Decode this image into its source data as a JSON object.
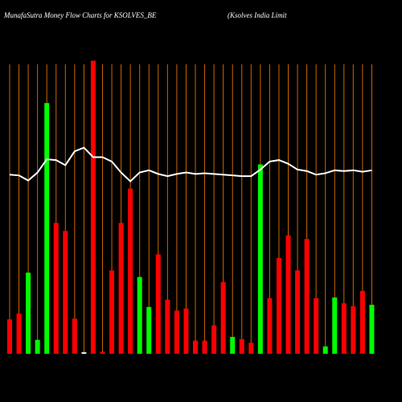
{
  "chart_data": {
    "type": "bar",
    "title": "MunafaSutra  Money Flow  Charts for KSOLVES_BE",
    "subtitle": "(Ksolves India  Limit",
    "categories": [
      null,
      null,
      null,
      null,
      null,
      null,
      null,
      null,
      null,
      null,
      null,
      null,
      null,
      null,
      null,
      null,
      null,
      null,
      null,
      null,
      null,
      null,
      null,
      null,
      null,
      null,
      null,
      null,
      null,
      null,
      null,
      null,
      null,
      null,
      null,
      null,
      null,
      null,
      null,
      null
    ],
    "values": [
      47,
      55,
      111,
      19,
      343,
      179,
      168,
      48,
      2,
      401,
      3,
      114,
      179,
      226,
      105,
      64,
      136,
      74,
      59,
      62,
      18,
      18,
      39,
      98,
      23,
      20,
      15,
      259,
      76,
      131,
      162,
      114,
      157,
      76,
      10,
      77,
      69,
      65,
      86,
      67
    ],
    "colors": [
      "#ff0000",
      "#ff0000",
      "#00ff00",
      "#00ff00",
      "#00ff00",
      "#ff0000",
      "#ff0000",
      "#ff0000",
      "#ffffff",
      "#ff0000",
      "#ff0000",
      "#ff0000",
      "#ff0000",
      "#ff0000",
      "#00ff00",
      "#00ff00",
      "#ff0000",
      "#ff0000",
      "#ff0000",
      "#ff0000",
      "#ff0000",
      "#ff0000",
      "#ff0000",
      "#ff0000",
      "#00ff00",
      "#ff0000",
      "#ff0000",
      "#00ff00",
      "#ff0000",
      "#ff0000",
      "#ff0000",
      "#ff0000",
      "#ff0000",
      "#ff0000",
      "#00ff00",
      "#00ff00",
      "#ff0000",
      "#ff0000",
      "#ff0000",
      "#00ff00"
    ],
    "line": {
      "color": "#ffffff",
      "values": [
        245,
        244,
        237,
        248,
        266,
        265,
        258,
        277,
        282,
        269,
        269,
        263,
        248,
        236,
        248,
        251,
        246,
        243,
        246,
        248,
        246,
        247,
        246,
        245,
        244,
        243,
        243,
        252,
        263,
        265,
        260,
        252,
        250,
        245,
        247,
        251,
        250,
        251,
        249,
        251
      ]
    },
    "grid_color": "#cc6600",
    "ylim": [
      0,
      440
    ]
  }
}
